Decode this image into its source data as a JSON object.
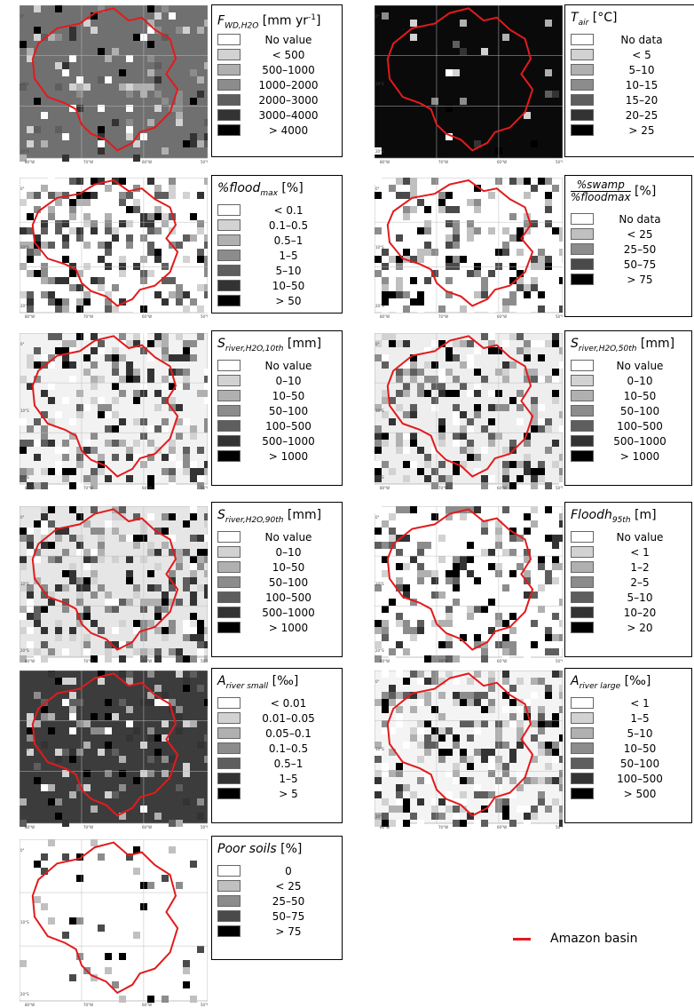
{
  "map_ticks": {
    "lon": [
      "80°W",
      "70°W",
      "60°W",
      "50°W"
    ],
    "lat": [
      "0°",
      "10°S",
      "20°S"
    ]
  },
  "basin_key": {
    "label": "Amazon basin",
    "color": "#e31a1c"
  },
  "panels": [
    {
      "id": "fwd",
      "title": "F",
      "sub": "WD,H2O",
      "unit": "[mm yr",
      "sup": "-1",
      "unit_end": "]",
      "fill": "#707070",
      "dense": 0.15,
      "legend": [
        {
          "c": "#ffffff",
          "t": "No value"
        },
        {
          "c": "#d2d2d2",
          "t": "< 500"
        },
        {
          "c": "#b0b0b0",
          "t": "500–1000"
        },
        {
          "c": "#8c8c8c",
          "t": "1000–2000"
        },
        {
          "c": "#5e5e5e",
          "t": "2000–3000"
        },
        {
          "c": "#333333",
          "t": "3000–4000"
        },
        {
          "c": "#000000",
          "t": "> 4000"
        }
      ]
    },
    {
      "id": "tair",
      "title": "T",
      "sub": "air",
      "unit": "[°C]",
      "fill": "#0a0a0a",
      "dense": 0.05,
      "legend": [
        {
          "c": "#ffffff",
          "t": "No data"
        },
        {
          "c": "#d2d2d2",
          "t": "< 5"
        },
        {
          "c": "#b0b0b0",
          "t": "5–10"
        },
        {
          "c": "#8c8c8c",
          "t": "10–15"
        },
        {
          "c": "#5e5e5e",
          "t": "15–20"
        },
        {
          "c": "#333333",
          "t": "20–25"
        },
        {
          "c": "#000000",
          "t": "> 25"
        }
      ]
    },
    {
      "id": "flood",
      "title": "%flood",
      "sub": "max",
      "unit": "[%]",
      "fill": "#ffffff",
      "dense": 0.4,
      "legend": [
        {
          "c": "#ffffff",
          "t": "< 0.1"
        },
        {
          "c": "#d2d2d2",
          "t": "0.1–0.5"
        },
        {
          "c": "#b0b0b0",
          "t": "0.5–1"
        },
        {
          "c": "#8c8c8c",
          "t": "1–5"
        },
        {
          "c": "#5e5e5e",
          "t": "5–10"
        },
        {
          "c": "#333333",
          "t": "10–50"
        },
        {
          "c": "#000000",
          "t": "> 50"
        }
      ]
    },
    {
      "id": "swamp",
      "title_num": "%swamp",
      "title_den": "%floodmax",
      "unit": "[%]",
      "fill": "#ffffff",
      "dense": 0.4,
      "legend": [
        {
          "c": "#ffffff",
          "t": "No data"
        },
        {
          "c": "#c0c0c0",
          "t": "< 25"
        },
        {
          "c": "#8c8c8c",
          "t": "25–50"
        },
        {
          "c": "#4a4a4a",
          "t": "50–75"
        },
        {
          "c": "#000000",
          "t": "> 75"
        }
      ]
    },
    {
      "id": "s10",
      "title": "S",
      "sub": "river,H2O,10th",
      "unit": "[mm]",
      "fill": "#f2f2f2",
      "dense": 0.35,
      "legend": [
        {
          "c": "#ffffff",
          "t": "No value"
        },
        {
          "c": "#d2d2d2",
          "t": "0–10"
        },
        {
          "c": "#b0b0b0",
          "t": "10–50"
        },
        {
          "c": "#8c8c8c",
          "t": "50–100"
        },
        {
          "c": "#5e5e5e",
          "t": "100–500"
        },
        {
          "c": "#333333",
          "t": "500–1000"
        },
        {
          "c": "#000000",
          "t": "> 1000"
        }
      ]
    },
    {
      "id": "s50",
      "title": "S",
      "sub": "river,H2O,50th",
      "unit": "[mm]",
      "fill": "#eeeeee",
      "dense": 0.35,
      "legend": [
        {
          "c": "#ffffff",
          "t": "No value"
        },
        {
          "c": "#d2d2d2",
          "t": "0–10"
        },
        {
          "c": "#b0b0b0",
          "t": "10–50"
        },
        {
          "c": "#8c8c8c",
          "t": "50–100"
        },
        {
          "c": "#5e5e5e",
          "t": "100–500"
        },
        {
          "c": "#333333",
          "t": "500–1000"
        },
        {
          "c": "#000000",
          "t": "> 1000"
        }
      ]
    },
    {
      "id": "s90",
      "title": "S",
      "sub": "river,H2O,90th",
      "unit": "[mm]",
      "fill": "#e6e6e6",
      "dense": 0.4,
      "legend": [
        {
          "c": "#ffffff",
          "t": "No value"
        },
        {
          "c": "#d2d2d2",
          "t": "0–10"
        },
        {
          "c": "#b0b0b0",
          "t": "10–50"
        },
        {
          "c": "#8c8c8c",
          "t": "50–100"
        },
        {
          "c": "#5e5e5e",
          "t": "100–500"
        },
        {
          "c": "#333333",
          "t": "500–1000"
        },
        {
          "c": "#000000",
          "t": "> 1000"
        }
      ]
    },
    {
      "id": "floodh",
      "title": "Floodh",
      "sub": "95th",
      "unit": "[m]",
      "fill": "#ffffff",
      "dense": 0.35,
      "legend": [
        {
          "c": "#ffffff",
          "t": "No value"
        },
        {
          "c": "#d2d2d2",
          "t": "< 1"
        },
        {
          "c": "#b0b0b0",
          "t": "1–2"
        },
        {
          "c": "#8c8c8c",
          "t": "2–5"
        },
        {
          "c": "#5e5e5e",
          "t": "5–10"
        },
        {
          "c": "#333333",
          "t": "10–20"
        },
        {
          "c": "#000000",
          "t": "> 20"
        }
      ]
    },
    {
      "id": "asmall",
      "title": "A",
      "sub": "river small",
      "unit": "[‰]",
      "fill": "#3c3c3c",
      "dense": 0.2,
      "legend": [
        {
          "c": "#ffffff",
          "t": "< 0.01"
        },
        {
          "c": "#d2d2d2",
          "t": "0.01–0.05"
        },
        {
          "c": "#b0b0b0",
          "t": "0.05–0.1"
        },
        {
          "c": "#8c8c8c",
          "t": "0.1–0.5"
        },
        {
          "c": "#5e5e5e",
          "t": "0.5–1"
        },
        {
          "c": "#333333",
          "t": "1–5"
        },
        {
          "c": "#000000",
          "t": "> 5"
        }
      ]
    },
    {
      "id": "alarge",
      "title": "A",
      "sub": "river large",
      "unit": "[‰]",
      "fill": "#f4f4f4",
      "dense": 0.45,
      "legend": [
        {
          "c": "#ffffff",
          "t": "< 1"
        },
        {
          "c": "#d2d2d2",
          "t": "1–5"
        },
        {
          "c": "#b0b0b0",
          "t": "5–10"
        },
        {
          "c": "#8c8c8c",
          "t": "10–50"
        },
        {
          "c": "#5e5e5e",
          "t": "50–100"
        },
        {
          "c": "#333333",
          "t": "100–500"
        },
        {
          "c": "#000000",
          "t": "> 500"
        }
      ]
    },
    {
      "id": "poor",
      "title": "Poor soils",
      "unit": "[%]",
      "fill": "#ffffff",
      "dense": 0.08,
      "legend": [
        {
          "c": "#ffffff",
          "t": "0"
        },
        {
          "c": "#c0c0c0",
          "t": "< 25"
        },
        {
          "c": "#8c8c8c",
          "t": "25–50"
        },
        {
          "c": "#4a4a4a",
          "t": "50–75"
        },
        {
          "c": "#000000",
          "t": "> 75"
        }
      ]
    }
  ]
}
